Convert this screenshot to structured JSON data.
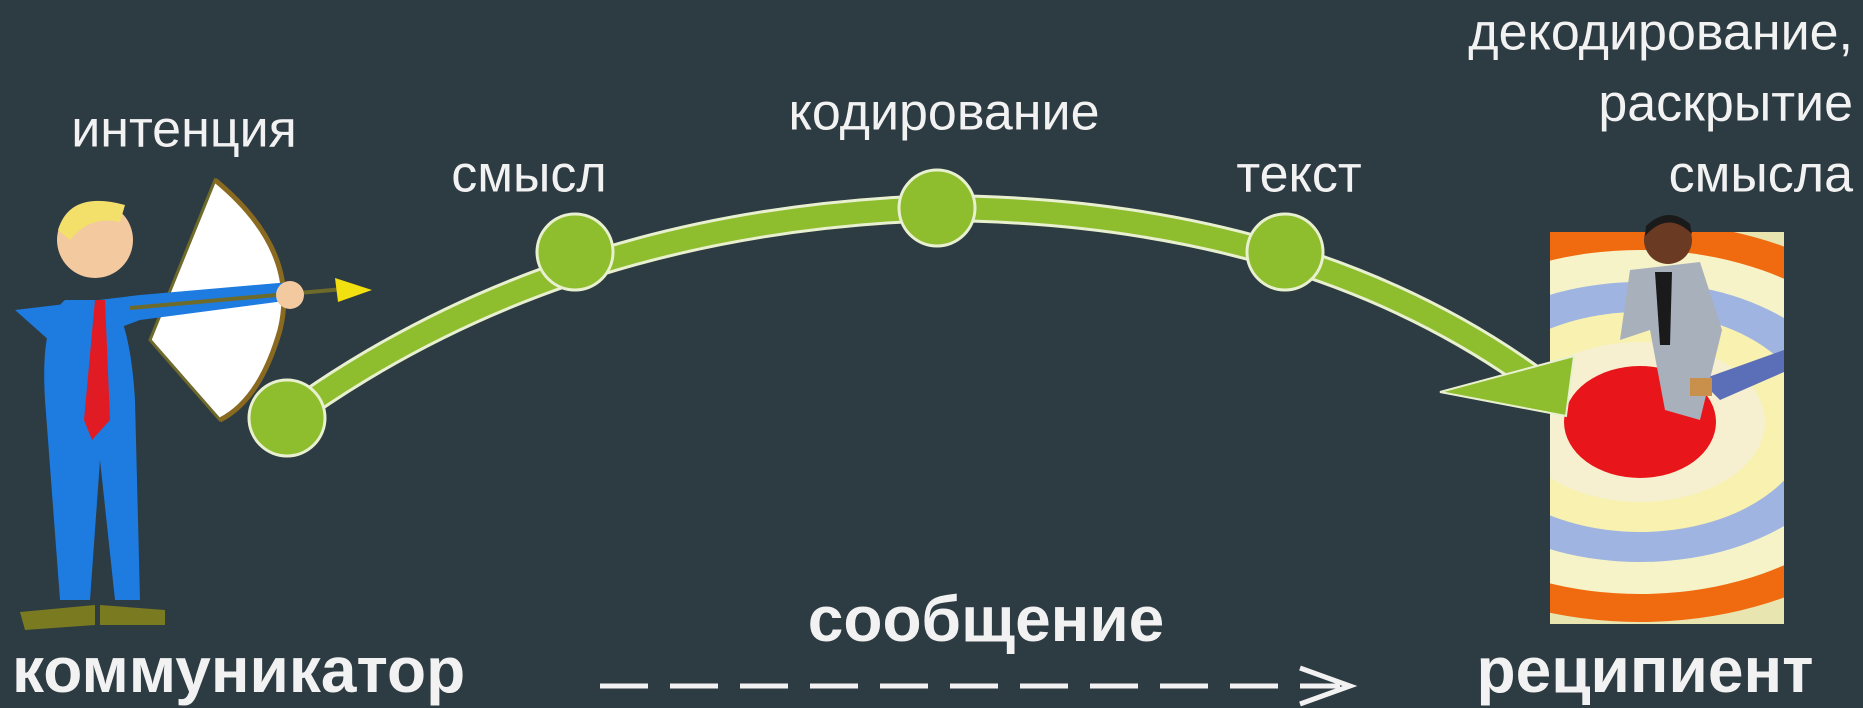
{
  "labels": {
    "intention": "интенция",
    "meaning": "смысл",
    "coding": "кодирование",
    "text": "текст",
    "decoding": [
      "декодирование,",
      "раскрытие",
      "смысла"
    ]
  },
  "roles": {
    "communicator": "коммуникатор",
    "message": "сообщение",
    "recipient": "реципиент"
  }
}
